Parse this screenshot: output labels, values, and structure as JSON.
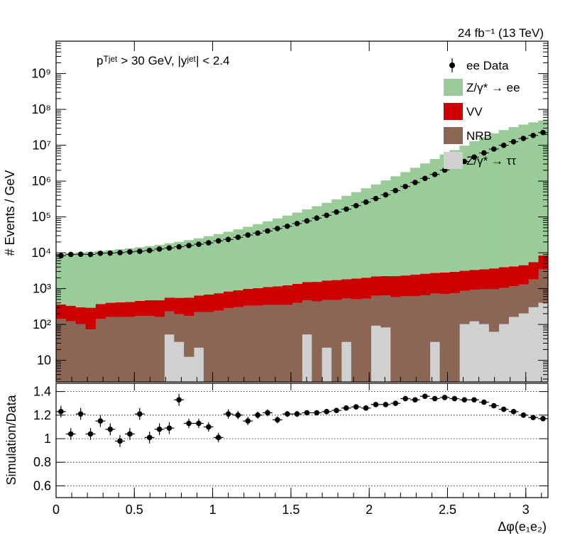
{
  "header": {
    "lumi_energy": "24 fb⁻¹ (13 TeV)",
    "selection": "pᵀʲᵉᵗ > 30 GeV,  |yʲᵉᵗ| < 2.4"
  },
  "legend": [
    {
      "label": "ee Data",
      "kind": "marker",
      "color": "#000000"
    },
    {
      "label": "Z/γ* → ee",
      "kind": "box",
      "color": "#99cc99"
    },
    {
      "label": "VV",
      "kind": "box",
      "color": "#cc0000"
    },
    {
      "label": "NRB",
      "kind": "box",
      "color": "#8b6655"
    },
    {
      "label": "Z/γ* → ττ",
      "kind": "box",
      "color": "#d0d0d0"
    }
  ],
  "axes": {
    "top_ylabel": "# Events / GeV",
    "bottom_ylabel": "Simulation/Data",
    "xlabel": "Δφ(e₁e₂)",
    "top_yticks": [
      "10",
      "10²",
      "10³",
      "10⁴",
      "10⁵",
      "10⁶",
      "10⁷",
      "10⁸",
      "10⁹"
    ],
    "bottom_yticks": [
      "0.6",
      "0.8",
      "1",
      "1.2",
      "1.4"
    ],
    "xticks": [
      "0",
      "0.5",
      "1",
      "1.5",
      "2",
      "2.5",
      "3"
    ]
  },
  "chart_data": [
    {
      "type": "area",
      "title": "",
      "x_label": "Δφ(e₁e₂)",
      "y_label": "# Events / GeV",
      "y_scale": "log",
      "xlim": [
        0,
        3.1416
      ],
      "ylim": [
        2.5,
        8000000000
      ],
      "stacked": true,
      "bin_count": 50,
      "series": [
        {
          "name": "Z/γ* → ττ",
          "color": "#d0d0d0",
          "values": [
            0,
            0,
            0,
            0,
            0,
            0,
            0,
            0,
            0,
            0,
            0,
            50,
            30,
            10,
            20,
            0,
            0,
            0,
            0,
            0,
            0,
            0,
            0,
            0,
            0,
            50,
            0,
            20,
            0,
            30,
            0,
            0,
            90,
            80,
            0,
            0,
            0,
            0,
            30,
            0,
            0,
            100,
            120,
            100,
            60,
            100,
            160,
            200,
            300,
            400
          ]
        },
        {
          "name": "NRB",
          "color": "#8b6655",
          "values": [
            140,
            120,
            100,
            70,
            140,
            160,
            160,
            160,
            170,
            170,
            160,
            180,
            160,
            160,
            200,
            220,
            240,
            280,
            300,
            330,
            330,
            350,
            350,
            350,
            400,
            420,
            440,
            460,
            480,
            500,
            500,
            520,
            540,
            560,
            580,
            620,
            620,
            650,
            700,
            700,
            740,
            760,
            800,
            850,
            900,
            950,
            1000,
            1100,
            1500,
            3000
          ]
        },
        {
          "name": "VV",
          "color": "#cc0000",
          "values": [
            220,
            210,
            200,
            220,
            230,
            240,
            250,
            260,
            280,
            300,
            310,
            330,
            360,
            390,
            420,
            460,
            500,
            550,
            600,
            650,
            700,
            750,
            800,
            880,
            950,
            1050,
            1100,
            1200,
            1250,
            1300,
            1400,
            1500,
            1550,
            1600,
            1650,
            1700,
            1850,
            1950,
            2000,
            2100,
            2200,
            2300,
            2400,
            2500,
            2700,
            2900,
            3000,
            3200,
            3700,
            5000
          ]
        },
        {
          "name": "Z/γ* → ee",
          "color": "#99cc99",
          "values": [
            9000,
            9500,
            10000,
            10400,
            10800,
            11400,
            12100,
            12900,
            13800,
            14900,
            16200,
            17800,
            19700,
            22000,
            24800,
            28300,
            32500,
            37800,
            44200,
            52200,
            62000,
            74300,
            89500,
            108000,
            131000,
            161000,
            198000,
            246000,
            307000,
            386000,
            490000,
            625000,
            805000,
            1040000,
            1360000,
            1780000,
            2350000,
            3110000,
            4130000,
            5500000,
            7320000,
            9750000,
            12900000,
            16800000,
            21300000,
            26500000,
            32000000,
            37800000,
            43500000,
            49000000
          ]
        }
      ],
      "data_series": {
        "name": "ee Data",
        "values": [
          8300,
          9000,
          9100,
          9000,
          9700,
          9800,
          10100,
          10600,
          11000,
          11600,
          12700,
          13600,
          14700,
          15900,
          17300,
          19000,
          21500,
          23600,
          27000,
          31300,
          35400,
          40600,
          47400,
          54900,
          65400,
          77500,
          92900,
          111000,
          137000,
          165000,
          206000,
          259000,
          326000,
          414000,
          543000,
          706000,
          915000,
          1190000,
          1530000,
          2030000,
          2690000,
          3520000,
          4660000,
          6090000,
          7820000,
          9960000,
          12500000,
          15500000,
          18800000,
          22600000
        ]
      }
    },
    {
      "type": "scatter",
      "title": "",
      "x_label": "Δφ(e₁e₂)",
      "y_label": "Simulation/Data",
      "xlim": [
        0,
        3.1416
      ],
      "ylim": [
        0.5,
        1.47
      ],
      "grid": "dotted horizontal",
      "x": [
        0.031,
        0.094,
        0.157,
        0.22,
        0.283,
        0.346,
        0.408,
        0.471,
        0.534,
        0.597,
        0.66,
        0.723,
        0.785,
        0.848,
        0.911,
        0.974,
        1.037,
        1.1,
        1.162,
        1.225,
        1.288,
        1.351,
        1.414,
        1.477,
        1.539,
        1.602,
        1.665,
        1.728,
        1.791,
        1.853,
        1.916,
        1.979,
        2.042,
        2.105,
        2.168,
        2.231,
        2.293,
        2.356,
        2.419,
        2.482,
        2.545,
        2.608,
        2.67,
        2.733,
        2.796,
        2.859,
        2.922,
        2.985,
        3.047,
        3.11
      ],
      "y": [
        1.23,
        1.04,
        1.21,
        1.04,
        1.15,
        1.08,
        0.98,
        1.04,
        1.21,
        1.01,
        1.08,
        1.09,
        1.33,
        1.13,
        1.13,
        1.1,
        1.01,
        1.21,
        1.2,
        1.15,
        1.2,
        1.22,
        1.16,
        1.21,
        1.21,
        1.22,
        1.22,
        1.23,
        1.24,
        1.26,
        1.27,
        1.26,
        1.29,
        1.29,
        1.3,
        1.34,
        1.33,
        1.36,
        1.34,
        1.35,
        1.34,
        1.33,
        1.33,
        1.31,
        1.28,
        1.25,
        1.23,
        1.2,
        1.18,
        1.17
      ],
      "y_err": [
        0.05,
        0.05,
        0.05,
        0.05,
        0.05,
        0.05,
        0.05,
        0.05,
        0.05,
        0.05,
        0.05,
        0.05,
        0.05,
        0.04,
        0.04,
        0.04,
        0.04,
        0.04,
        0.035,
        0.035,
        0.03,
        0.03,
        0.03,
        0.025,
        0.025,
        0.02,
        0.02,
        0.02,
        0.02,
        0.015,
        0.015,
        0.015,
        0.01,
        0.01,
        0.01,
        0.01,
        0.01,
        0.01,
        0.01,
        0.01,
        0.01,
        0.01,
        0.01,
        0.01,
        0.01,
        0.01,
        0.01,
        0.01,
        0.01,
        0.01
      ]
    }
  ]
}
